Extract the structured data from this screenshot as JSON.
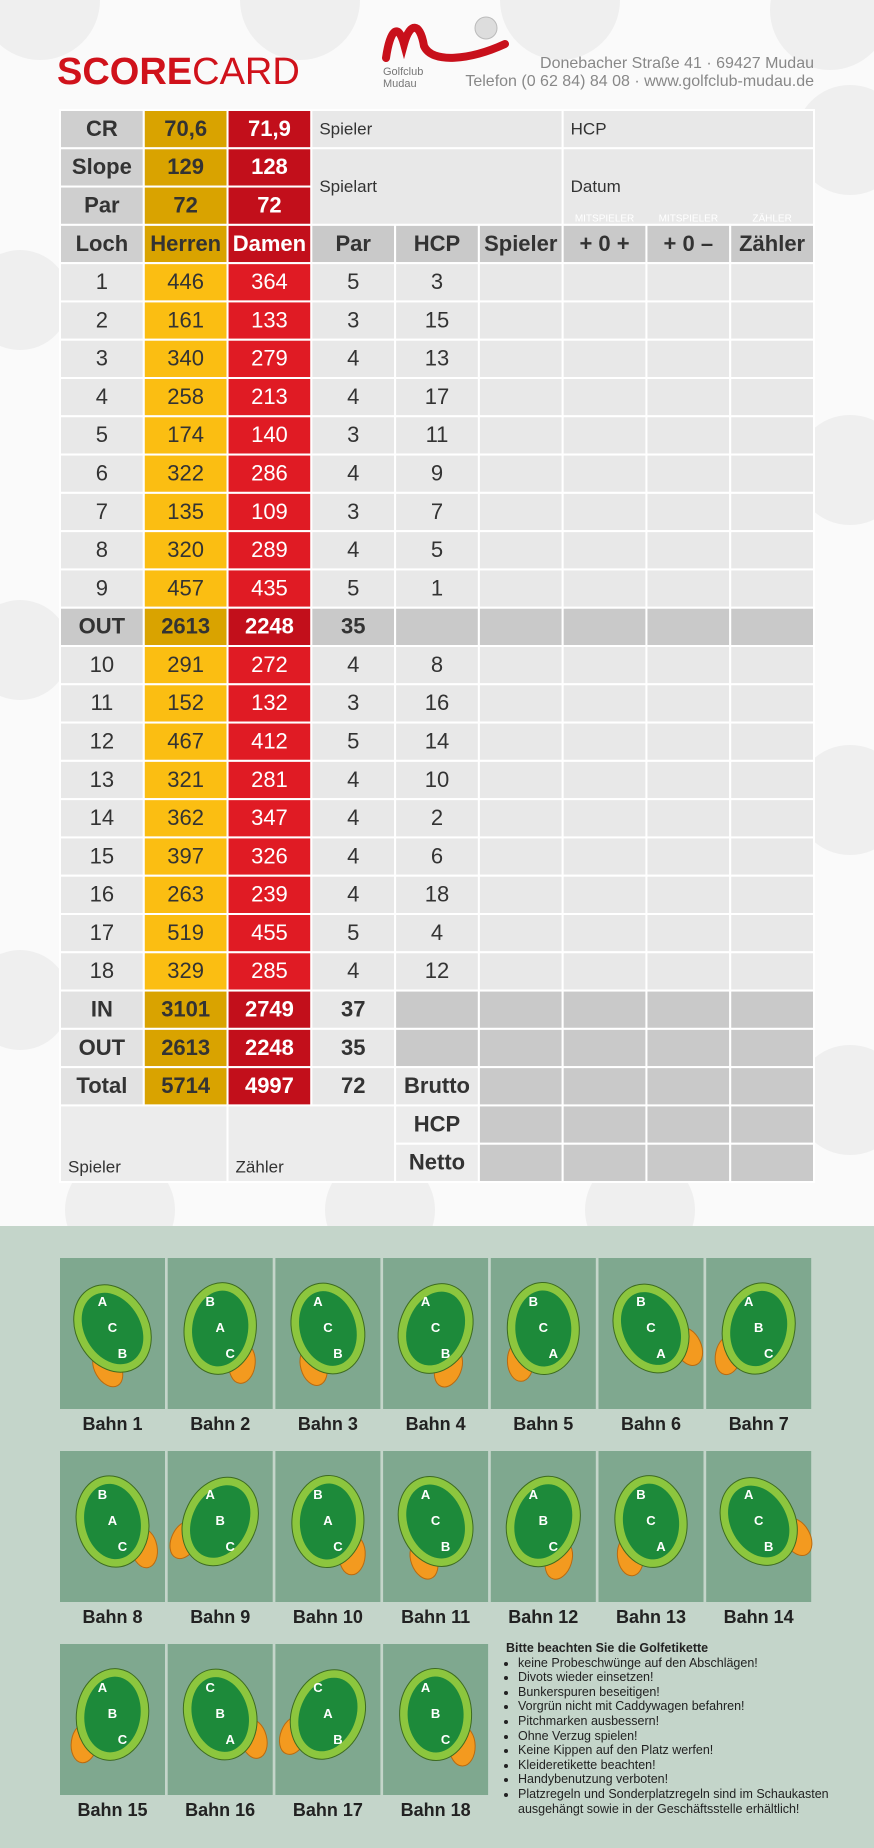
{
  "header": {
    "title_bold": "SCORE",
    "title_light": "CARD",
    "logo_lines": [
      "Golfclub",
      "Mudau"
    ],
    "address": "Donebacher Straße 41 · 69427 Mudau",
    "contact": "Telefon (0 62 84) 84 08 · www.golfclub-mudau.de"
  },
  "ratings": [
    [
      "CR",
      "70,6",
      "71,9"
    ],
    [
      "Slope",
      129,
      128
    ],
    [
      "Par",
      72,
      72
    ]
  ],
  "fields": [
    "Spieler",
    "HCP",
    "Spielart",
    "Datum"
  ],
  "score_labels": [
    "MITSPIELER",
    "MITSPIELER",
    "ZÄHLER"
  ],
  "table": {
    "columns": [
      "Loch",
      "Herren",
      "Damen",
      "Par",
      "HCP",
      "Spieler",
      "+ 0 +",
      "+ 0 –",
      "Zähler"
    ],
    "front_nine": [
      [
        1,
        446,
        364,
        5,
        3
      ],
      [
        2,
        161,
        133,
        3,
        15
      ],
      [
        3,
        340,
        279,
        4,
        13
      ],
      [
        4,
        258,
        213,
        4,
        17
      ],
      [
        5,
        174,
        140,
        3,
        11
      ],
      [
        6,
        322,
        286,
        4,
        9
      ],
      [
        7,
        135,
        109,
        3,
        7
      ],
      [
        8,
        320,
        289,
        4,
        5
      ],
      [
        9,
        457,
        435,
        5,
        1
      ]
    ],
    "out": [
      "OUT",
      2613,
      2248,
      35
    ],
    "back_nine": [
      [
        10,
        291,
        272,
        4,
        8
      ],
      [
        11,
        152,
        132,
        3,
        16
      ],
      [
        12,
        467,
        412,
        5,
        14
      ],
      [
        13,
        321,
        281,
        4,
        10
      ],
      [
        14,
        362,
        347,
        4,
        2
      ],
      [
        15,
        397,
        326,
        4,
        6
      ],
      [
        16,
        263,
        239,
        4,
        18
      ],
      [
        17,
        519,
        455,
        5,
        4
      ],
      [
        18,
        329,
        285,
        4,
        12
      ]
    ],
    "totals": [
      [
        "IN",
        3101,
        2749,
        37
      ],
      [
        "OUT",
        2613,
        2248,
        35
      ],
      [
        "Total",
        5714,
        4997,
        72,
        "Brutto"
      ]
    ],
    "netto_labels": [
      "HCP",
      "Netto"
    ],
    "signers": [
      "Spieler",
      "Zähler"
    ]
  },
  "greens": [
    {
      "label": "Bahn 1",
      "pins": [
        "A",
        "C",
        "B"
      ]
    },
    {
      "label": "Bahn 2",
      "pins": [
        "B",
        "A",
        "C"
      ]
    },
    {
      "label": "Bahn 3",
      "pins": [
        "A",
        "C",
        "B"
      ]
    },
    {
      "label": "Bahn 4",
      "pins": [
        "A",
        "C",
        "B"
      ]
    },
    {
      "label": "Bahn 5",
      "pins": [
        "B",
        "C",
        "A"
      ]
    },
    {
      "label": "Bahn 6",
      "pins": [
        "B",
        "C",
        "A"
      ]
    },
    {
      "label": "Bahn 7",
      "pins": [
        "A",
        "B",
        "C"
      ]
    },
    {
      "label": "Bahn 8",
      "pins": [
        "B",
        "A",
        "C"
      ]
    },
    {
      "label": "Bahn 9",
      "pins": [
        "A",
        "B",
        "C"
      ]
    },
    {
      "label": "Bahn 10",
      "pins": [
        "B",
        "A",
        "C"
      ]
    },
    {
      "label": "Bahn 11",
      "pins": [
        "A",
        "C",
        "B"
      ]
    },
    {
      "label": "Bahn 12",
      "pins": [
        "A",
        "B",
        "C"
      ]
    },
    {
      "label": "Bahn 13",
      "pins": [
        "B",
        "C",
        "A"
      ]
    },
    {
      "label": "Bahn 14",
      "pins": [
        "A",
        "C",
        "B"
      ]
    },
    {
      "label": "Bahn 15",
      "pins": [
        "A",
        "B",
        "C"
      ]
    },
    {
      "label": "Bahn 16",
      "pins": [
        "C",
        "B",
        "A"
      ]
    },
    {
      "label": "Bahn 17",
      "pins": [
        "C",
        "A",
        "B"
      ]
    },
    {
      "label": "Bahn 18",
      "pins": [
        "A",
        "B",
        "C"
      ]
    }
  ],
  "etiquette": {
    "title": "Bitte beachten Sie die Golfetikette",
    "items": [
      "keine Probeschwünge auf den Abschlägen!",
      "Divots wieder einsetzen!",
      "Bunkerspuren beseitigen!",
      "Vorgrün nicht mit Caddywagen befahren!",
      "Pitchmarken ausbessern!",
      "Ohne Verzug spielen!",
      "Keine Kippen auf den Platz werfen!",
      "Kleideretikette beachten!",
      "Handybenutzung verboten!",
      "Platzregeln und Sonderplatzregeln sind im Schaukasten ausgehängt sowie in der Geschäftsstelle erhältlich!"
    ]
  }
}
